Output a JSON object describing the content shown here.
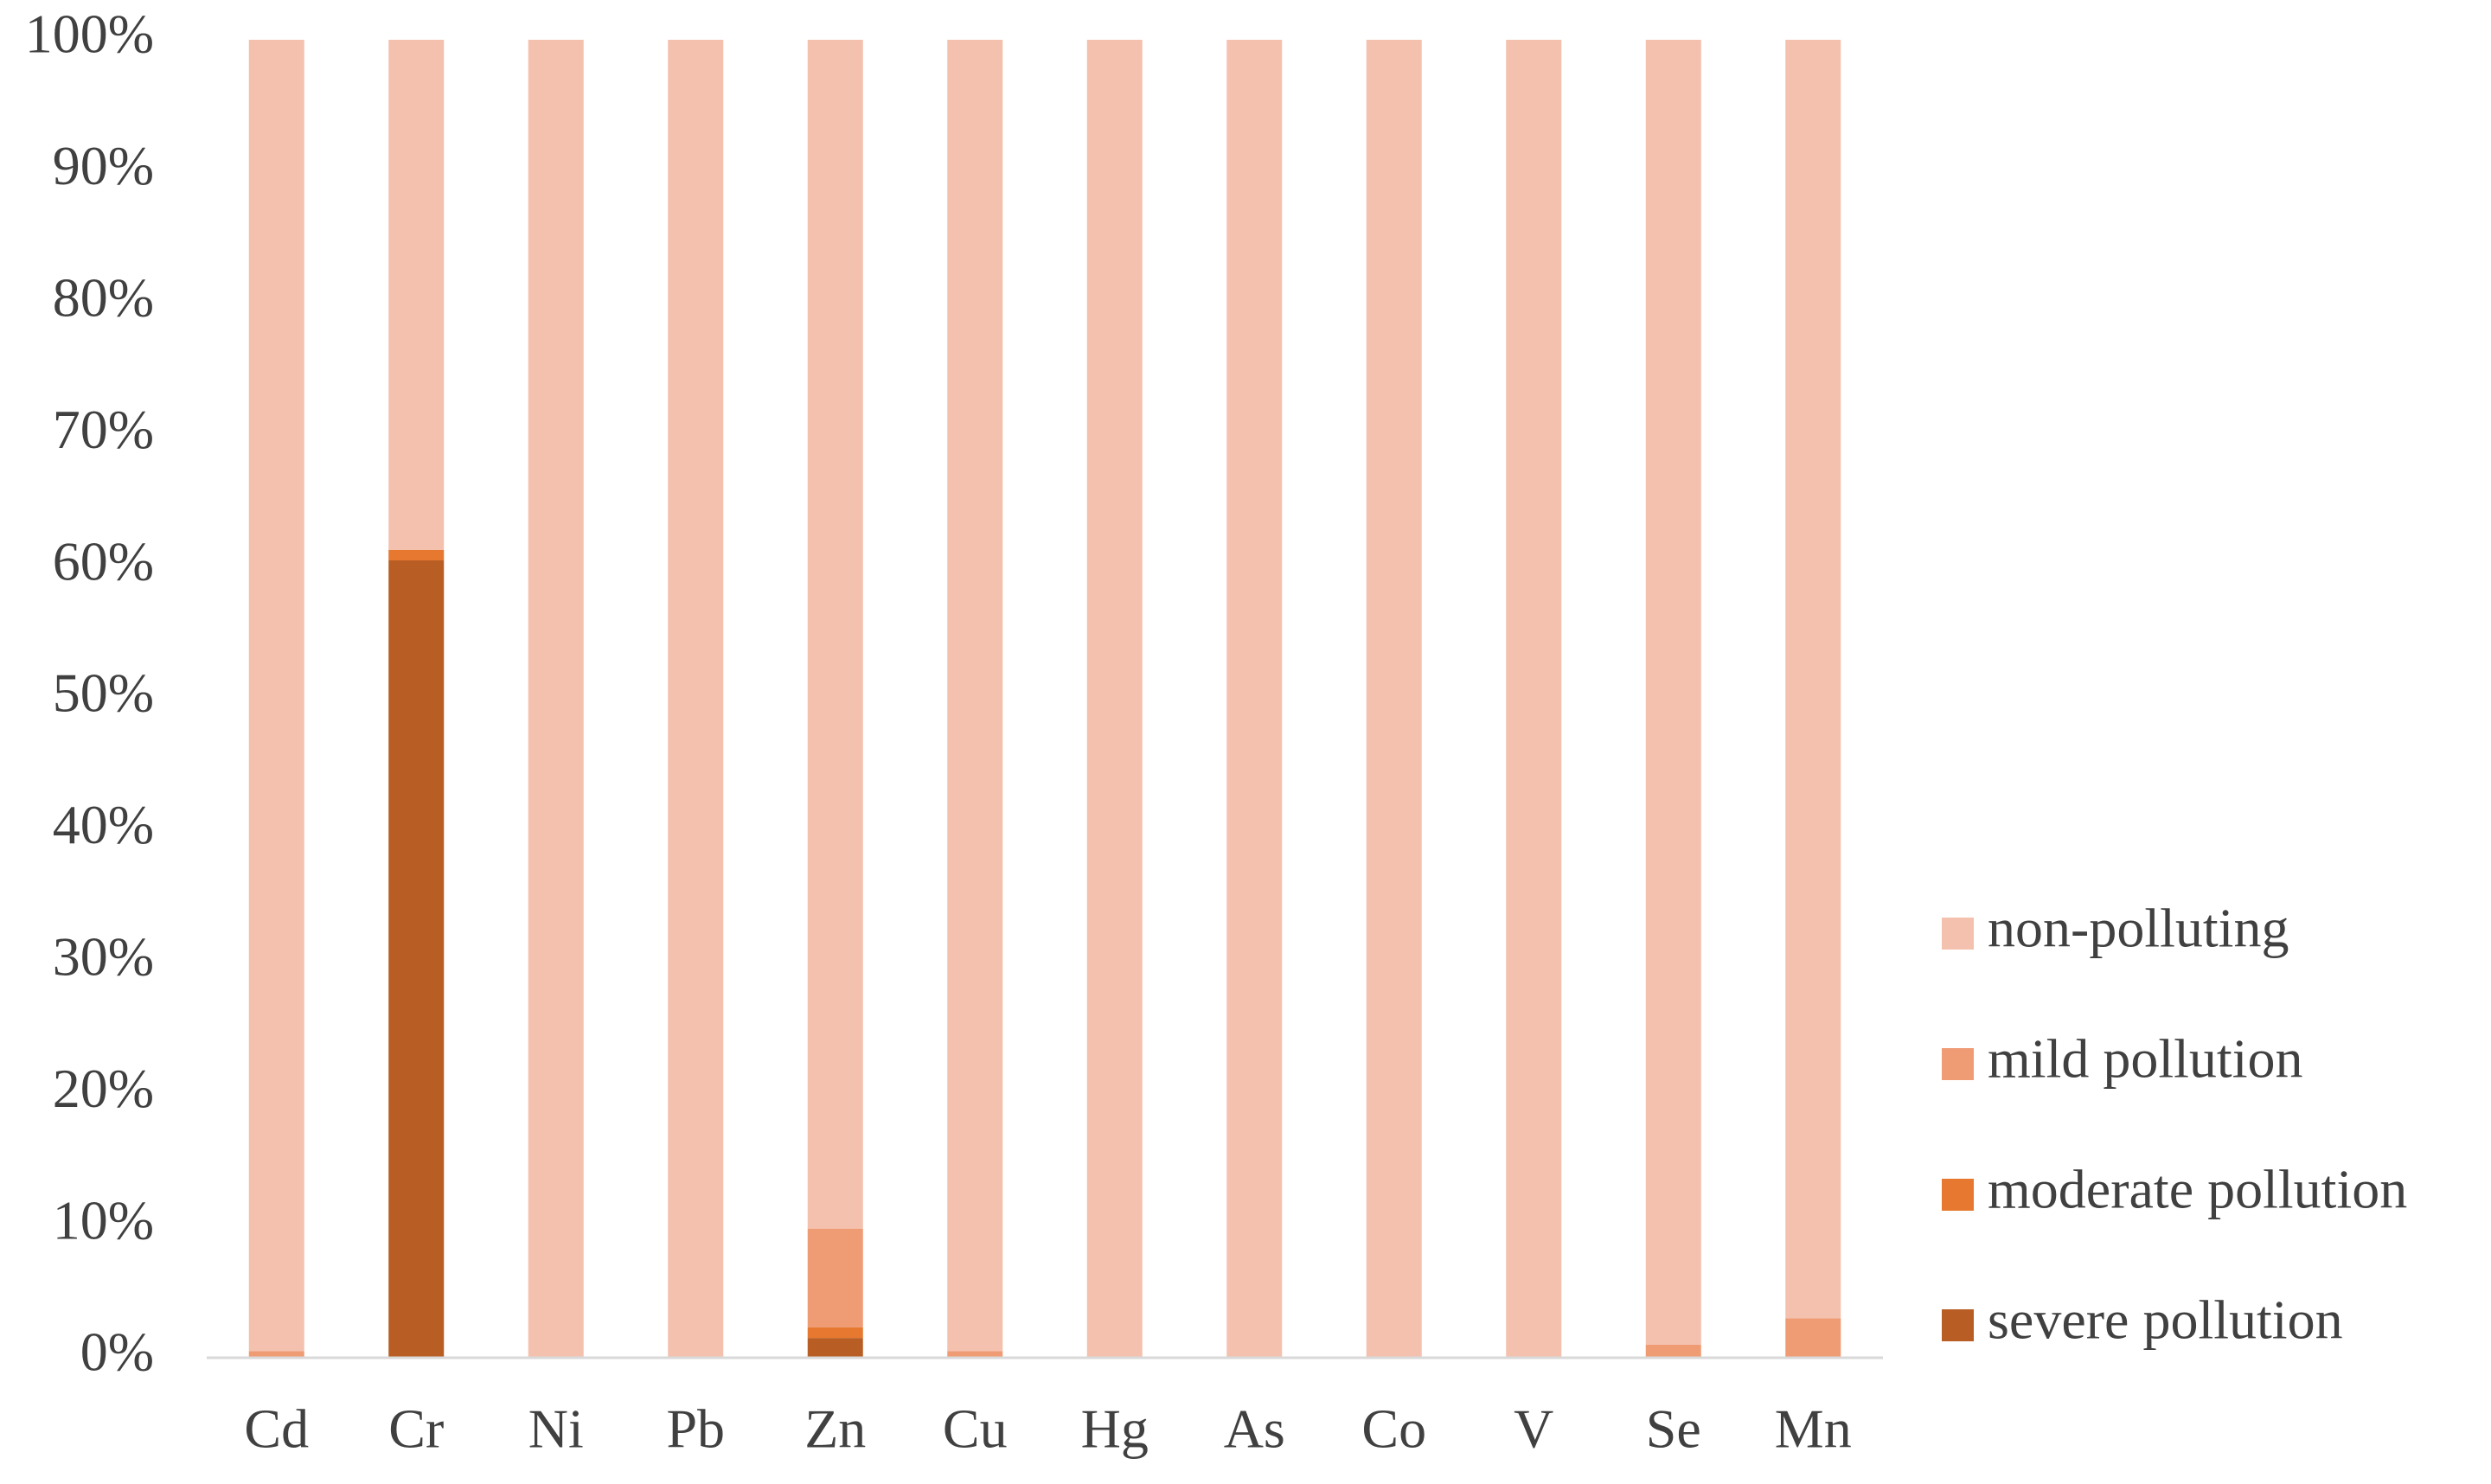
{
  "chart_data": {
    "type": "stacked_bar",
    "categories": [
      "Cd",
      "Cr",
      "Ni",
      "Pb",
      "Zn",
      "Cu",
      "Hg",
      "As",
      "Co",
      "V",
      "Se",
      "Mn"
    ],
    "series": [
      {
        "name": "non-polluting",
        "color": "#f4c1ae",
        "values": [
          99.5,
          38.7,
          100,
          100,
          90.2,
          99.5,
          100,
          100,
          100,
          100,
          99,
          97
        ]
      },
      {
        "name": "mild pollution",
        "color": "#ef9b74",
        "values": [
          0.5,
          0,
          0,
          0,
          7.5,
          0.5,
          0,
          0,
          0,
          0,
          1,
          3
        ]
      },
      {
        "name": "moderate pollution",
        "color": "#e6782f",
        "values": [
          0,
          0.8,
          0,
          0,
          0.8,
          0,
          0,
          0,
          0,
          0,
          0,
          0
        ]
      },
      {
        "name": "severe pollution",
        "color": "#b85e24",
        "values": [
          0,
          60.5,
          0,
          0,
          1.5,
          0,
          0,
          0,
          0,
          0,
          0,
          0
        ]
      }
    ],
    "ylim": [
      0,
      100
    ],
    "yticks": [
      {
        "value": 0,
        "label": "0%"
      },
      {
        "value": 10,
        "label": "10%"
      },
      {
        "value": 20,
        "label": "20%"
      },
      {
        "value": 30,
        "label": "30%"
      },
      {
        "value": 40,
        "label": "40%"
      },
      {
        "value": 50,
        "label": "50%"
      },
      {
        "value": 60,
        "label": "60%"
      },
      {
        "value": 70,
        "label": "70%"
      },
      {
        "value": 80,
        "label": "80%"
      },
      {
        "value": 90,
        "label": "90%"
      },
      {
        "value": 100,
        "label": "100%"
      }
    ],
    "grid": false,
    "legend": "right"
  }
}
